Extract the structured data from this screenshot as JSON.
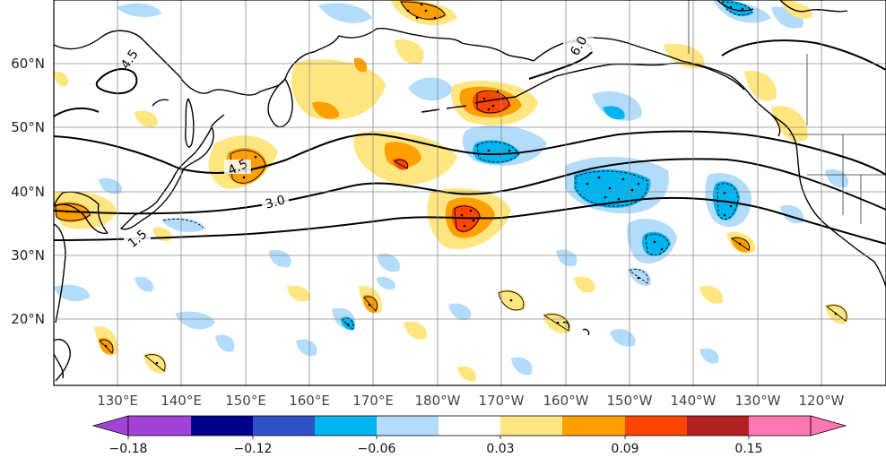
{
  "map": {
    "latitude_labels": [
      "60°N",
      "50°N",
      "40°N",
      "30°N",
      "20°N"
    ],
    "longitude_labels": [
      "130°E",
      "140°E",
      "150°E",
      "160°E",
      "170°E",
      "180°W",
      "170°W",
      "160°W",
      "150°W",
      "140°W",
      "130°W",
      "120°W"
    ],
    "contour_labels": [
      "4.5",
      "6.0",
      "4.5",
      "3.0",
      "1.5"
    ],
    "anomaly_colors": {
      "negative_strong": "#a342d6",
      "negative_navy": "#00008b",
      "negative_blue": "#2f52c9",
      "negative_cyan": "#00b4f0",
      "negative_light": "#b2dcfa",
      "neutral": "#ffffff",
      "positive_yellow": "#ffe680",
      "positive_orange": "#ffa000",
      "positive_red_orange": "#ff4500",
      "positive_dark_red": "#b22222",
      "positive_pink": "#ff78b4"
    }
  },
  "colorbar": {
    "tick_labels": [
      "−0.18",
      "−0.12",
      "−0.06",
      "0.03",
      "0.09",
      "0.15"
    ],
    "colors": [
      "#a342d6",
      "#00008b",
      "#2f52c9",
      "#00b4f0",
      "#b2dcfa",
      "#ffffff",
      "#ffe680",
      "#ffa000",
      "#ff4500",
      "#b22222",
      "#ff78b4"
    ]
  }
}
